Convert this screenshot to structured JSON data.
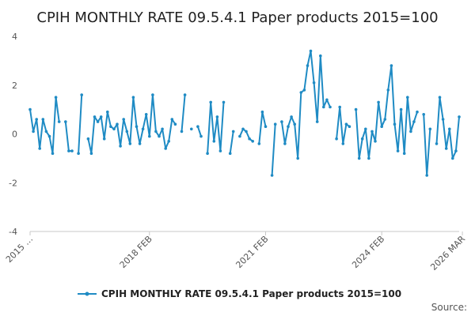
{
  "chart_data": {
    "type": "line",
    "title": "CPIH MONTHLY RATE 09.5.4.1 Paper products 2015=100",
    "ylim": [
      -4,
      4
    ],
    "yticks": [
      4,
      2,
      0,
      -2,
      -4
    ],
    "xticks": [
      {
        "label": "2015 …",
        "index": 0
      },
      {
        "label": "2018 FEB",
        "index": 37
      },
      {
        "label": "2021 FEB",
        "index": 73
      },
      {
        "label": "2024 FEB",
        "index": 109
      },
      {
        "label": "2026 MAR",
        "index": 134
      }
    ],
    "series": [
      {
        "name": "CPIH MONTHLY RATE 09.5.4.1 Paper products 2015=100",
        "color": "#1f8bc4",
        "values": [
          1.0,
          0.1,
          0.6,
          -0.6,
          0.6,
          0.1,
          -0.1,
          -0.8,
          1.5,
          0.5,
          null,
          0.5,
          -0.7,
          -0.7,
          null,
          -0.8,
          1.6,
          null,
          -0.2,
          -0.8,
          0.7,
          0.5,
          0.7,
          -0.2,
          0.9,
          0.3,
          0.2,
          0.4,
          -0.5,
          0.6,
          0.1,
          -0.4,
          1.5,
          0.3,
          -0.4,
          0.2,
          0.8,
          -0.1,
          1.6,
          0.1,
          -0.1,
          0.2,
          -0.6,
          -0.3,
          0.6,
          0.4,
          null,
          0.1,
          1.6,
          null,
          0.2,
          null,
          0.3,
          -0.1,
          null,
          -0.8,
          1.3,
          -0.3,
          0.7,
          -0.7,
          1.3,
          null,
          -0.8,
          0.1,
          null,
          -0.1,
          0.2,
          0.1,
          -0.2,
          -0.3,
          null,
          -0.4,
          0.9,
          0.3,
          null,
          -1.7,
          0.4,
          null,
          0.5,
          -0.4,
          0.3,
          0.7,
          0.4,
          -1.0,
          1.7,
          1.8,
          2.8,
          3.4,
          2.1,
          0.5,
          3.2,
          1.1,
          1.4,
          1.1,
          null,
          -0.2,
          1.1,
          -0.4,
          0.4,
          0.3,
          null,
          1.0,
          -1.0,
          -0.2,
          0.2,
          -1.0,
          0.1,
          -0.3,
          1.3,
          0.3,
          0.6,
          1.8,
          2.8,
          0.4,
          -0.7,
          1.0,
          -0.8,
          1.5,
          0.1,
          0.5,
          0.9,
          null,
          0.8,
          -1.7,
          0.2,
          null,
          -0.4,
          1.5,
          0.6,
          -0.6,
          0.2,
          -1.0,
          -0.7,
          0.7
        ]
      }
    ],
    "legend_position": "bottom",
    "source_label": "Source:"
  }
}
